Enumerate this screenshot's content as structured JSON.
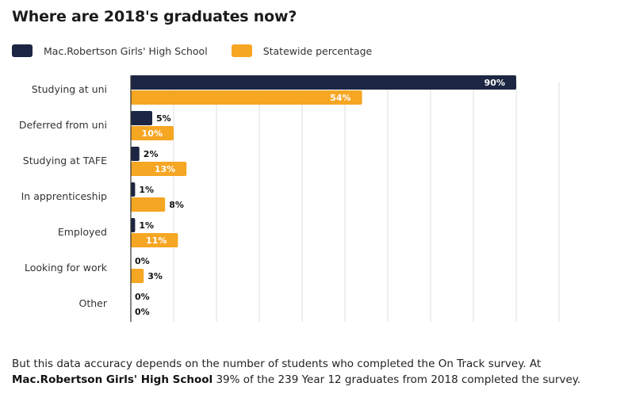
{
  "title": "Where are 2018's graduates now?",
  "legend": [
    {
      "label": "Mac.Robertson Girls' High School",
      "color": "#1c2541"
    },
    {
      "label": "Statewide percentage",
      "color": "#f5a623"
    }
  ],
  "chart_data": {
    "type": "bar",
    "orientation": "horizontal",
    "categories": [
      "Studying at uni",
      "Deferred from uni",
      "Studying at TAFE",
      "In apprenticeship",
      "Employed",
      "Looking for work",
      "Other"
    ],
    "series": [
      {
        "name": "Mac.Robertson Girls' High School",
        "values": [
          90,
          5,
          2,
          1,
          1,
          0,
          0
        ],
        "labels": [
          "90%",
          "5%",
          "2%",
          "1%",
          "1%",
          "0%",
          "0%"
        ],
        "color": "#1c2541"
      },
      {
        "name": "Statewide percentage",
        "values": [
          54,
          10,
          13,
          8,
          11,
          3,
          0
        ],
        "labels": [
          "54%",
          "10%",
          "13%",
          "8%",
          "11%",
          "3%",
          "0%"
        ],
        "color": "#f5a623"
      }
    ],
    "xlim": [
      0,
      100
    ],
    "grid": true,
    "legend_position": "top-left"
  },
  "footnote": {
    "part1": "But this data accuracy depends on the number of students who completed the On Track survey. At ",
    "school": "Mac.Robertson Girls' High School",
    "part2": " 39% of the 239 Year 12 graduates from 2018 completed the survey."
  }
}
